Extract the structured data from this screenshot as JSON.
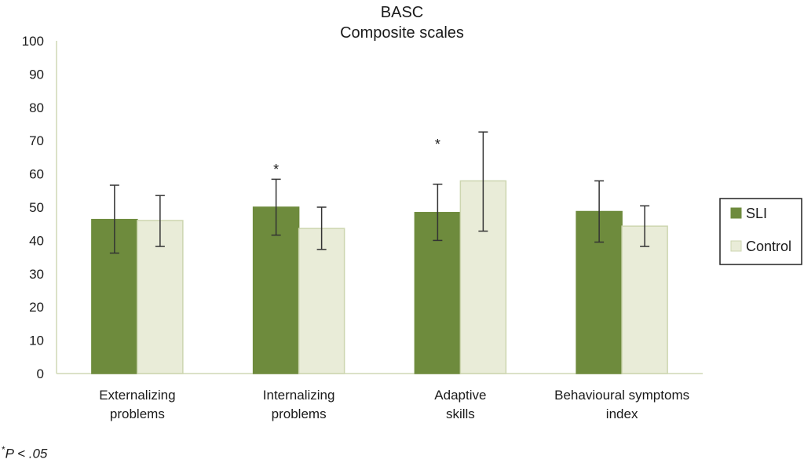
{
  "chart_data": {
    "type": "bar",
    "title": "BASC",
    "subtitle": "Composite scales",
    "xlabel": "",
    "ylabel": "",
    "ylim": [
      0,
      100
    ],
    "yticks": [
      0,
      10,
      20,
      30,
      40,
      50,
      60,
      70,
      80,
      90,
      100
    ],
    "categories": [
      [
        "Externalizing",
        "problems"
      ],
      [
        "Internalizing",
        "problems"
      ],
      [
        "Adaptive",
        "skills"
      ],
      [
        "Behavioural symptoms",
        "index"
      ]
    ],
    "series": [
      {
        "name": "SLI",
        "color": "#6e8b3d",
        "values": [
          46.3,
          50.0,
          48.4,
          48.7
        ],
        "err_low": [
          36.2,
          41.6,
          40.0,
          39.5
        ],
        "err_high": [
          56.6,
          58.4,
          56.9,
          57.9
        ]
      },
      {
        "name": "Control",
        "color": "#e9ecd8",
        "edge": "#cdd6b0",
        "values": [
          46.0,
          43.6,
          57.9,
          44.3
        ],
        "err_low": [
          38.2,
          37.3,
          42.8,
          38.2
        ],
        "err_high": [
          53.5,
          50.0,
          72.6,
          50.4
        ]
      }
    ],
    "annotations": [
      {
        "category_index": 1,
        "text": "*",
        "y": 62.3
      },
      {
        "category_index": 2,
        "text": "*",
        "y": 69.8
      }
    ],
    "legend": {
      "position": "right"
    },
    "grid": false
  },
  "footnote": {
    "symbol": "*",
    "text": "P < .05"
  }
}
